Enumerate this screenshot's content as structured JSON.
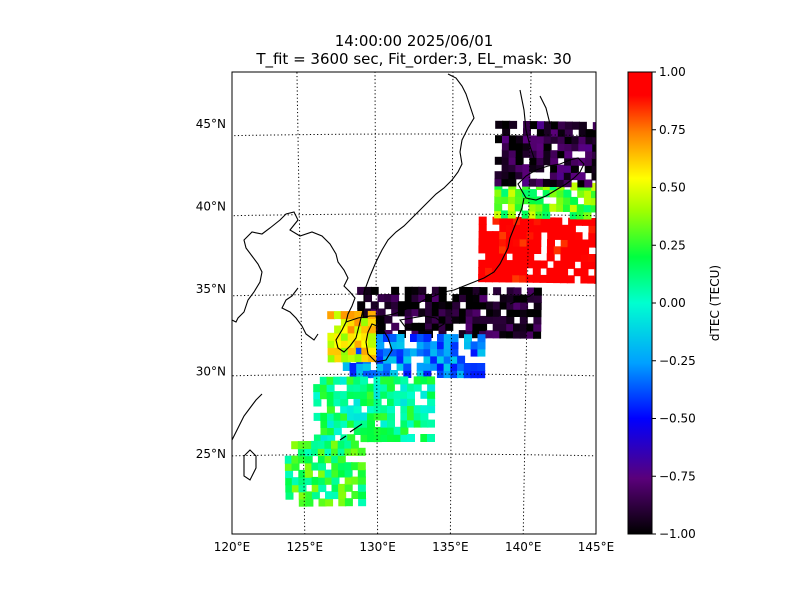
{
  "title": {
    "line1": "14:00:00 2025/06/01",
    "line2": "T_fit = 3600 sec, Fit_order:3, EL_mask: 30"
  },
  "map": {
    "projection": "conic",
    "lon_range": [
      120,
      145
    ],
    "lat_range": [
      20,
      49
    ],
    "graticule": "dotted",
    "lon_ticks": [
      "120°E",
      "125°E",
      "130°E",
      "135°E",
      "140°E",
      "145°E"
    ],
    "lat_ticks": [
      "25°N",
      "30°N",
      "35°N",
      "40°N",
      "45°N"
    ]
  },
  "colorbar": {
    "label": "dTEC (TECU)",
    "ticks": [
      "1.00",
      "0.75",
      "0.50",
      "0.25",
      "0.00",
      "−0.25",
      "−0.50",
      "−0.75",
      "−1.00"
    ],
    "range": [
      -1.0,
      1.0
    ],
    "colormap": [
      "#000000",
      "#5a007a",
      "#0000ff",
      "#00a0ff",
      "#00ffd0",
      "#00ff40",
      "#a0ff00",
      "#ffff00",
      "#ff8000",
      "#ff0000"
    ]
  },
  "chart_data": {
    "type": "heatmap",
    "value_label": "dTEC (TECU)",
    "clim": [
      -1.0,
      1.0
    ],
    "regions": [
      {
        "lon": [
          137,
          145
        ],
        "lat": [
          36,
          40
        ],
        "value": 1.0
      },
      {
        "lon": [
          138,
          145
        ],
        "lat": [
          40,
          42
        ],
        "value": 0.3
      },
      {
        "lon": [
          138,
          145
        ],
        "lat": [
          42,
          46
        ],
        "value": -0.9
      },
      {
        "lon": [
          129,
          141
        ],
        "lat": [
          32.5,
          35.5
        ],
        "value": -0.95
      },
      {
        "lon": [
          128,
          137
        ],
        "lat": [
          30,
          32.5
        ],
        "value": -0.3
      },
      {
        "lon": [
          126,
          134
        ],
        "lat": [
          26,
          30
        ],
        "value": 0.1
      },
      {
        "lon": [
          124,
          129
        ],
        "lat": [
          22,
          26
        ],
        "value": 0.2
      },
      {
        "lon": [
          127,
          130
        ],
        "lat": [
          31,
          34
        ],
        "value": 0.55
      }
    ]
  }
}
